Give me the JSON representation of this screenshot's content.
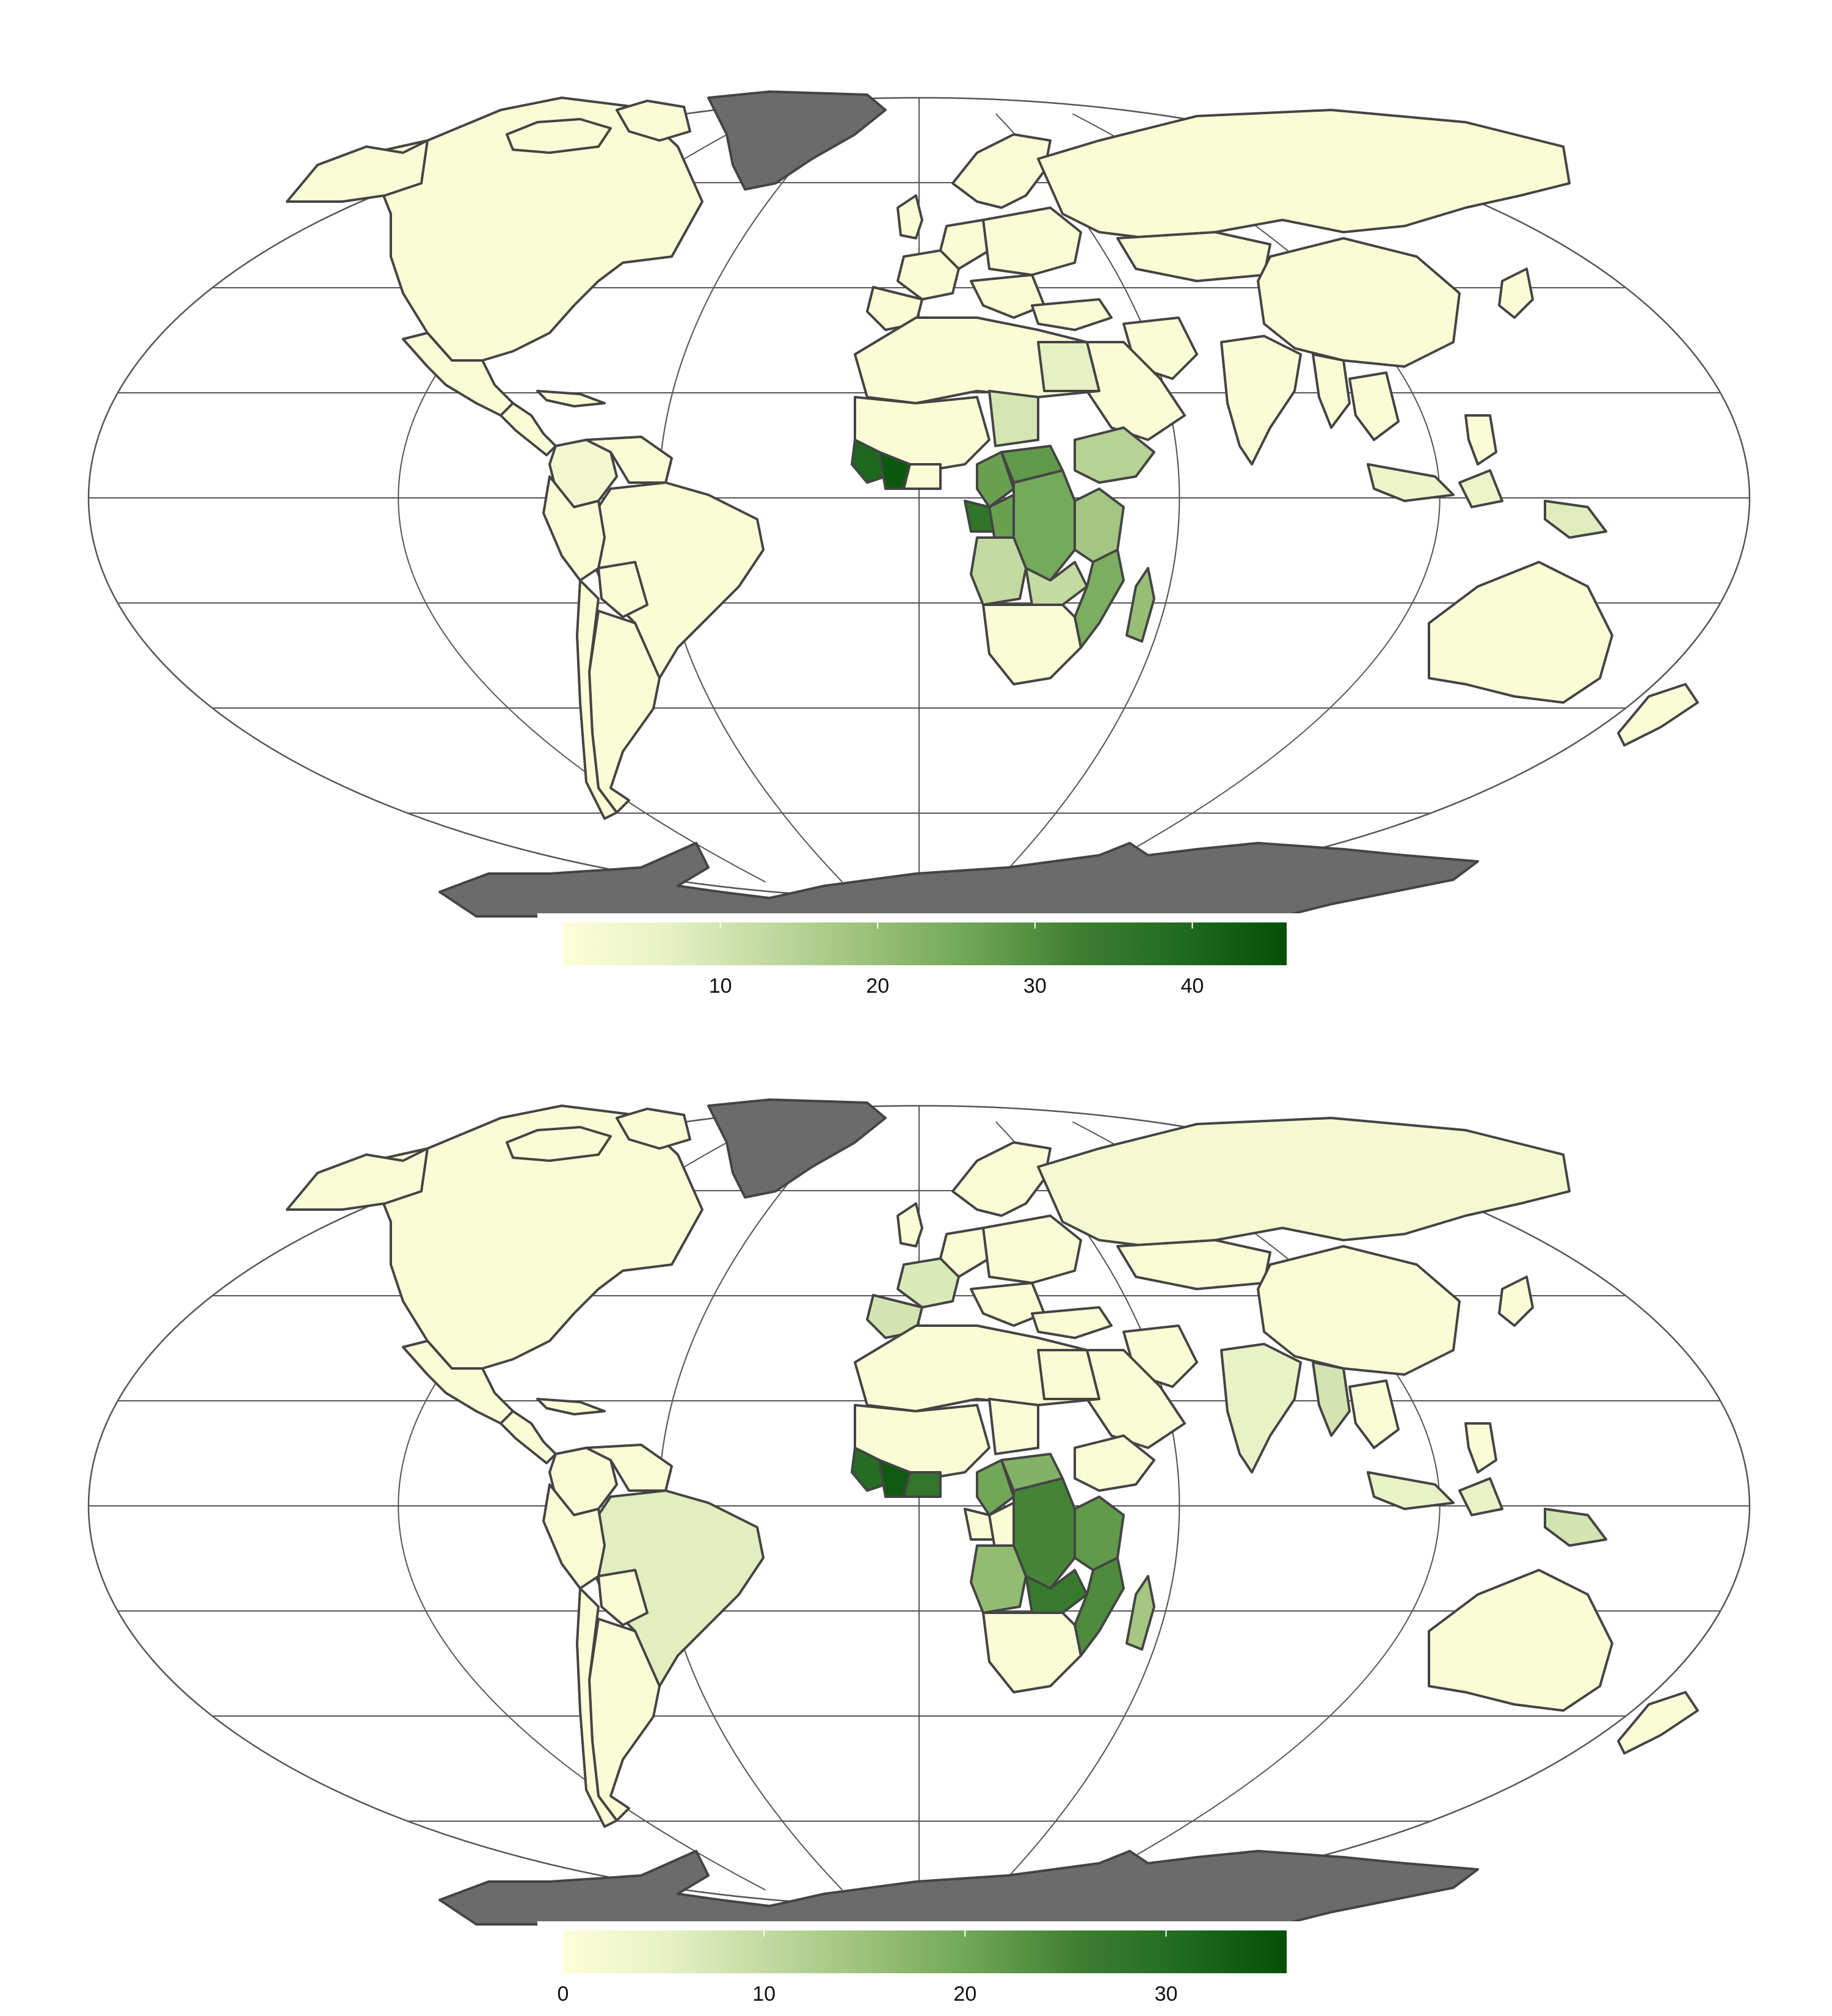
{
  "colors": {
    "background": "#ffffff",
    "ocean": "#ffffff",
    "graticule": "#555555",
    "border": "#444444",
    "no_data": "#6b6b6b",
    "scale": [
      "#fdfed8",
      "#e8f1c6",
      "#c2daa0",
      "#98bf77",
      "#6da454",
      "#3f7f32",
      "#1f6a1f",
      "#045004"
    ]
  },
  "maps": [
    {
      "colorbar": {
        "min": 0,
        "max": 46,
        "ticks": [
          10,
          20,
          30,
          40
        ]
      },
      "regions": [
        {
          "name": "Liberia",
          "value": 44
        },
        {
          "name": "Sierra Leone",
          "value": 40
        },
        {
          "name": "Gabon",
          "value": 36
        },
        {
          "name": "DR Congo",
          "value": 25
        },
        {
          "name": "Central African Republic",
          "value": 28
        },
        {
          "name": "Cameroon",
          "value": 27
        },
        {
          "name": "Republic of the Congo",
          "value": 27
        },
        {
          "name": "Mozambique",
          "value": 24
        },
        {
          "name": "Madagascar",
          "value": 20
        },
        {
          "name": "Angola",
          "value": 13
        },
        {
          "name": "Zambia",
          "value": 13
        },
        {
          "name": "Tanzania",
          "value": 18
        },
        {
          "name": "Ethiopia",
          "value": 15
        },
        {
          "name": "Chad",
          "value": 10
        },
        {
          "name": "Egypt",
          "value": 7
        },
        {
          "name": "South Africa",
          "value": 5
        },
        {
          "name": "Papua New Guinea",
          "value": 8
        },
        {
          "name": "Indonesia",
          "value": 5
        },
        {
          "name": "Colombia",
          "value": 3
        }
      ]
    },
    {
      "colorbar": {
        "min": 0,
        "max": 36,
        "ticks": [
          0,
          10,
          20,
          30
        ]
      },
      "regions": [
        {
          "name": "Liberia",
          "value": 34
        },
        {
          "name": "Sierra Leone",
          "value": 30
        },
        {
          "name": "Côte d'Ivoire",
          "value": 28
        },
        {
          "name": "DR Congo",
          "value": 25
        },
        {
          "name": "Zambia",
          "value": 27
        },
        {
          "name": "Mozambique",
          "value": 24
        },
        {
          "name": "Angola",
          "value": 16
        },
        {
          "name": "Cameroon",
          "value": 20
        },
        {
          "name": "Madagascar",
          "value": 14
        },
        {
          "name": "Tanzania",
          "value": 22
        },
        {
          "name": "Central African Republic",
          "value": 18
        },
        {
          "name": "India",
          "value": 5
        },
        {
          "name": "Brazil",
          "value": 6
        },
        {
          "name": "France",
          "value": 7
        },
        {
          "name": "Spain",
          "value": 8
        },
        {
          "name": "Myanmar",
          "value": 8
        },
        {
          "name": "Papua New Guinea",
          "value": 8
        },
        {
          "name": "Indonesia",
          "value": 5
        },
        {
          "name": "Russia",
          "value": 2
        }
      ]
    }
  ]
}
